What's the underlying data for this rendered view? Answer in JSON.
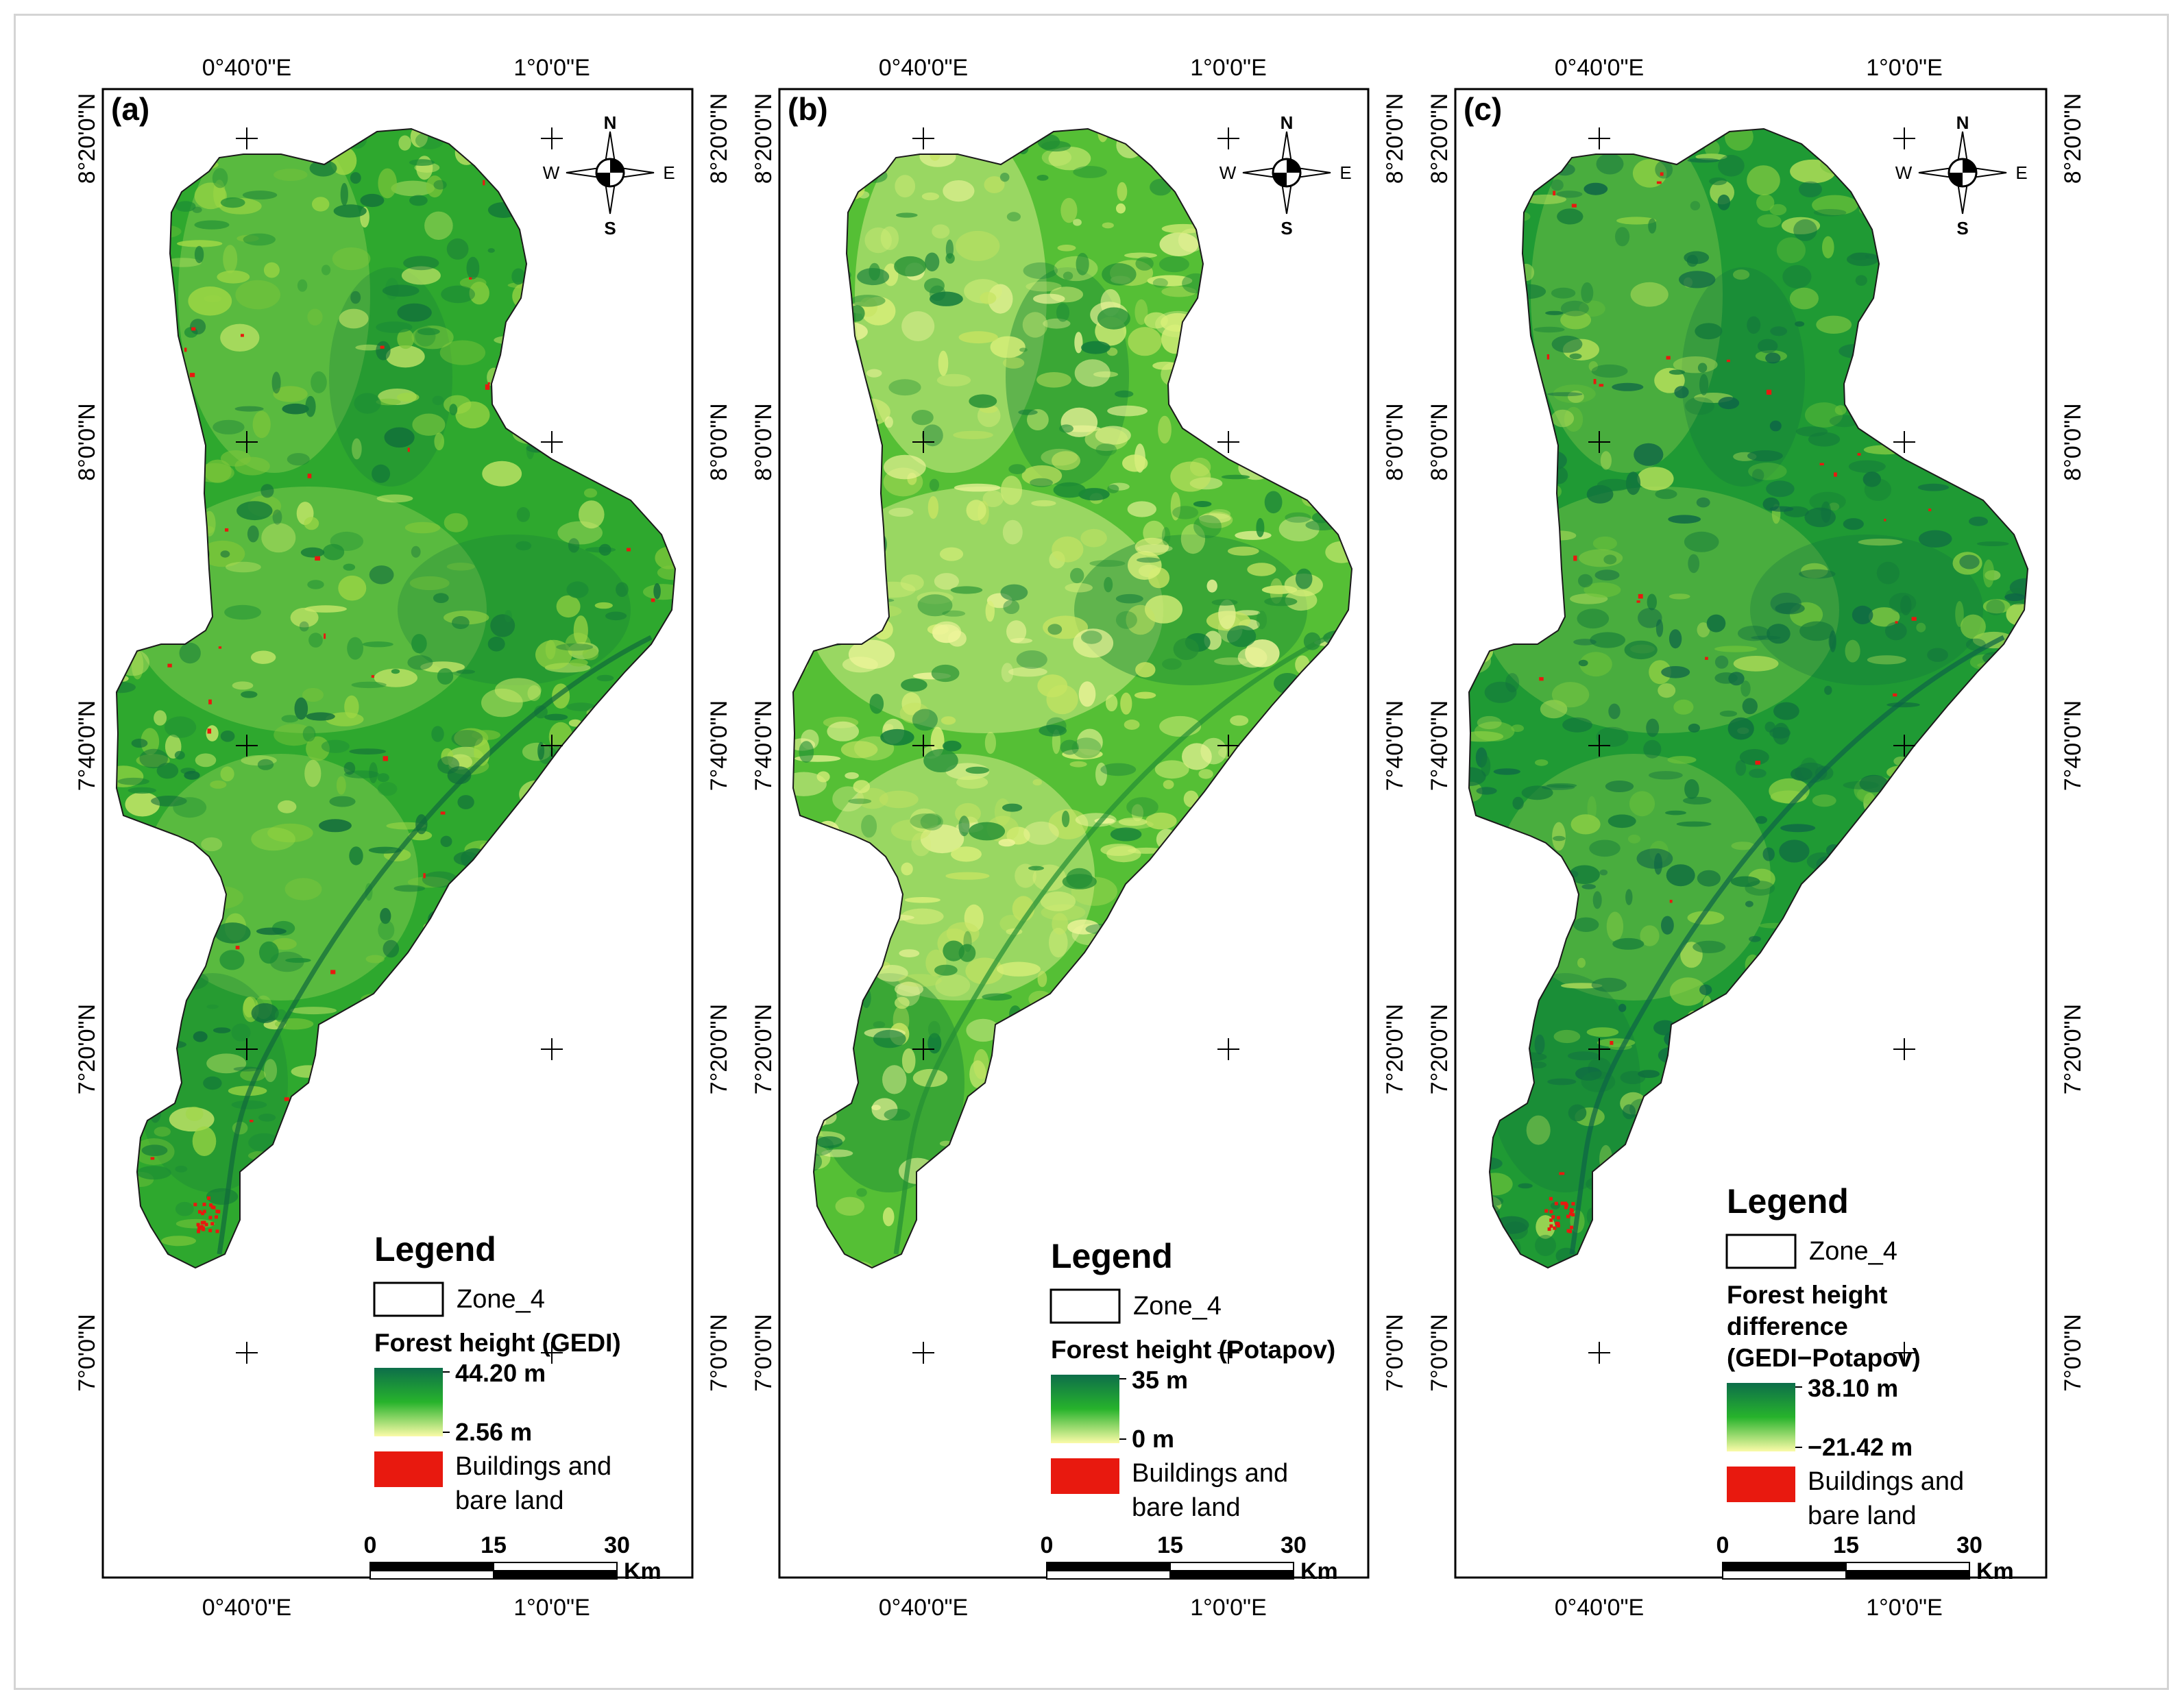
{
  "panels": [
    {
      "letter": "(a)",
      "variant": "gedi",
      "legend": {
        "title": "Legend",
        "zone_label": "Zone_4",
        "layer_title_lines": [
          "Forest height (GEDI)"
        ],
        "ramp_max": "44.20 m",
        "ramp_min": "2.56 m",
        "bare_lines": [
          "Buildings and",
          "bare land"
        ]
      }
    },
    {
      "letter": "(b)",
      "variant": "potapov",
      "legend": {
        "title": "Legend",
        "zone_label": "Zone_4",
        "layer_title_lines": [
          "Forest height (Potapov)"
        ],
        "ramp_max": "35 m",
        "ramp_min": "0 m",
        "bare_lines": [
          "Buildings and",
          "bare land"
        ]
      }
    },
    {
      "letter": "(c)",
      "variant": "diff",
      "legend": {
        "title": "Legend",
        "zone_label": "Zone_4",
        "layer_title_lines": [
          "Forest height",
          "difference",
          "(GEDI−Potapov)"
        ],
        "ramp_max": "38.10 m",
        "ramp_min": "−21.42 m",
        "bare_lines": [
          "Buildings and",
          "bare land"
        ]
      }
    }
  ],
  "lon_labels": [
    "0°40'0\"E",
    "1°0'0\"E"
  ],
  "lat_labels": [
    "8°20'0\"N",
    "8°0'0\"N",
    "7°40'0\"N",
    "7°20'0\"N",
    "7°0'0\"N"
  ],
  "compass": {
    "n": "N",
    "s": "S",
    "e": "E",
    "w": "W"
  },
  "scalebar": {
    "ticks": [
      "0",
      "15",
      "30"
    ],
    "unit": "Km"
  },
  "colors": {
    "ramp_high": "#0d6e4a",
    "ramp_mid": "#27b32c",
    "ramp_low": "#fbfba8",
    "bare_land": "#e8190f",
    "frame": "#000000"
  }
}
